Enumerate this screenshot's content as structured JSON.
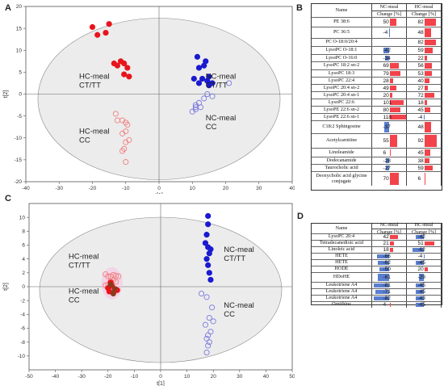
{
  "panel_labels": {
    "a": "A",
    "b": "B",
    "c": "C",
    "d": "D"
  },
  "colors": {
    "hc_filled": "#e8141c",
    "hc_open": "#f08080",
    "nc_filled": "#1a1ad0",
    "nc_open": "#7a7ae0",
    "ellipse_fill": "#ececec",
    "bar_red": "#f2434b",
    "bar_blue": "#5a7fd0"
  },
  "chart_data": [
    {
      "type": "scatter",
      "xlabel": "t[1]",
      "ylabel": "t[2]",
      "xlim": [
        -40,
        40
      ],
      "ylim": [
        -20,
        20
      ],
      "xticks": [
        -40,
        -30,
        -20,
        -10,
        0,
        10,
        20,
        30,
        40
      ],
      "yticks": [
        -20,
        -15,
        -10,
        -5,
        0,
        5,
        10,
        15,
        20
      ],
      "annotations": [
        {
          "text": "HC-meal\nCT/TT",
          "x": -24,
          "y": 3.5
        },
        {
          "text": "HC-meal\nCC",
          "x": -24,
          "y": -9
        },
        {
          "text": "NC-meal\nCT/TT",
          "x": 14,
          "y": 3.5
        },
        {
          "text": "NC-meal\nCC",
          "x": 14,
          "y": -6
        }
      ],
      "series": [
        {
          "name": "HC-meal CT/TT",
          "filled": true,
          "color": "hc_filled",
          "x": [
            -20,
            -18.5,
            -15,
            -16,
            -13.5,
            -12.5,
            -11.5,
            -10.5,
            -9.5,
            -9,
            -10.5
          ],
          "y": [
            15.3,
            13.5,
            16,
            14,
            7,
            6.5,
            7.5,
            7,
            6,
            4,
            4.5
          ]
        },
        {
          "name": "HC-meal CC",
          "filled": false,
          "color": "hc_open",
          "x": [
            -13,
            -12.5,
            -11,
            -10,
            -9.5,
            -10,
            -11,
            -9,
            -10,
            -11,
            -10.5,
            -10
          ],
          "y": [
            -4.5,
            -6,
            -6,
            -6.5,
            -7,
            -8.5,
            -9,
            -10.5,
            -11,
            -13,
            -12.5,
            -15.5
          ]
        },
        {
          "name": "NC-meal CT/TT",
          "filled": true,
          "color": "nc_filled",
          "x": [
            11.5,
            14,
            13.5,
            12,
            10.5,
            15,
            13,
            12,
            14.5,
            16,
            15
          ],
          "y": [
            8.5,
            7.5,
            6.5,
            6,
            3.5,
            4,
            3.5,
            2.5,
            3,
            2.5,
            2
          ]
        },
        {
          "name": "NC-meal CC",
          "filled": false,
          "color": "nc_open",
          "x": [
            21,
            16,
            14.5,
            13.5,
            12,
            11,
            12.5,
            11,
            10,
            11
          ],
          "y": [
            2.5,
            -0.5,
            0,
            -1,
            -2,
            -2.5,
            -3,
            -3.5,
            -4,
            -3
          ]
        }
      ]
    },
    {
      "type": "scatter",
      "xlabel": "t[1]",
      "ylabel": "t[2]",
      "xlim": [
        -50,
        50
      ],
      "ylim": [
        -12,
        12
      ],
      "xticks": [
        -50,
        -40,
        -30,
        -20,
        -10,
        0,
        10,
        20,
        30,
        40,
        50
      ],
      "yticks": [
        -10,
        -8,
        -6,
        -4,
        -2,
        0,
        2,
        4,
        6,
        8,
        10
      ],
      "annotations": [
        {
          "text": "HC-meal\nCT/TT",
          "x": -35,
          "y": 4
        },
        {
          "text": "HC-meal\nCC",
          "x": -35,
          "y": -1
        },
        {
          "text": "NC-meal\nCT/TT",
          "x": 24,
          "y": 5
        },
        {
          "text": "NC-meal\nCC",
          "x": 24,
          "y": -3
        }
      ],
      "series": [
        {
          "name": "HC-meal CT/TT",
          "filled": false,
          "color": "hc_open",
          "x": [
            -21,
            -20,
            -19,
            -18,
            -17,
            -16,
            -19,
            -18,
            -17,
            -21,
            -20
          ],
          "y": [
            1.8,
            1.5,
            1.5,
            1.7,
            1.6,
            1.5,
            0.8,
            0.9,
            0.7,
            0.2,
            0.3
          ]
        },
        {
          "name": "HC-meal CC",
          "filled": true,
          "color": "hc_filled",
          "x": [
            -20,
            -18.5,
            -17,
            -19.5,
            -18,
            -16.5,
            -19
          ],
          "y": [
            -0.2,
            0.1,
            -0.4,
            -0.7,
            -0.9,
            -0.5,
            0.6
          ]
        },
        {
          "name": "NC-meal CT/TT",
          "filled": true,
          "color": "nc_filled",
          "x": [
            18,
            18,
            17.5,
            17,
            18,
            19,
            18.5,
            17.5,
            18,
            18.5,
            19
          ],
          "y": [
            10.2,
            9,
            7.5,
            6.3,
            5.7,
            5.4,
            4.8,
            4,
            3.1,
            2,
            1
          ]
        },
        {
          "name": "NC-meal CC",
          "filled": false,
          "color": "nc_open",
          "x": [
            15.5,
            17.5,
            19.5,
            17,
            18.5,
            20,
            19,
            18,
            17.5,
            18.5,
            18,
            17.5
          ],
          "y": [
            -1,
            -1.5,
            -3,
            -5.5,
            -4.5,
            -5,
            -6.5,
            -7,
            -7.5,
            -8,
            -8.5,
            -9.5
          ]
        }
      ]
    }
  ],
  "table_b": {
    "header": {
      "name": "Name",
      "col1": "NC-meal",
      "col1_sub": "Change [%]",
      "col2": "HC-meal",
      "col2_sub": "Change [%]"
    },
    "rows": [
      {
        "name": "PE 38:6",
        "nc": "50",
        "hc": "82",
        "nc_v": 50,
        "hc_v": 82
      },
      {
        "name": "PC 36:5",
        "nc": "-4",
        "hc": "48",
        "nc_v": -4,
        "hc_v": 48
      },
      {
        "name": "PC O-18:0/20:4",
        "nc": "",
        "hc": "82",
        "nc_v": 0,
        "hc_v": 82
      },
      {
        "name": "LysoPC O-18:1",
        "nc": "-42",
        "hc": "59",
        "nc_v": -42,
        "hc_v": 59
      },
      {
        "name": "LysoPC O-16:0",
        "nc": "-34",
        "hc": "22",
        "nc_v": -34,
        "hc_v": 22
      },
      {
        "name": "LysoPC 18:2 sn-2",
        "nc": "69",
        "hc": "56",
        "nc_v": 69,
        "hc_v": 56
      },
      {
        "name": "LysoPC 18:3",
        "nc": "79",
        "hc": "53",
        "nc_v": 79,
        "hc_v": 53
      },
      {
        "name": "LysoPC 22:4",
        "nc": "28",
        "hc": "40",
        "nc_v": 28,
        "hc_v": 40
      },
      {
        "name": "LysoPC 20:4 sn-2",
        "nc": "49",
        "hc": "27",
        "nc_v": 49,
        "hc_v": 27
      },
      {
        "name": "LysoPC 20:4 sn-1",
        "nc": "20",
        "hc": "72",
        "nc_v": 20,
        "hc_v": 72
      },
      {
        "name": "LysoPC 22:6",
        "nc": "101",
        "hc": "18",
        "nc_v": 101,
        "hc_v": 18
      },
      {
        "name": "LysoPE 22:6 sn-2",
        "nc": "80",
        "hc": "45",
        "nc_v": 80,
        "hc_v": 45
      },
      {
        "name": "LysoPE 22:6 sn-1",
        "nc": "118",
        "hc": "-4",
        "nc_v": 118,
        "hc_v": -4
      },
      {
        "name": "C18:2 Sphingosine",
        "nc": "-37",
        "hc": "48",
        "nc_v": -37,
        "hc_v": 48
      },
      {
        "name": "Acetylcarnitine",
        "nc": "55",
        "hc": "92",
        "nc_v": 55,
        "hc_v": 92
      },
      {
        "name": "Linoleamide",
        "nc": "6",
        "hc": "45",
        "nc_v": 6,
        "hc_v": 45
      },
      {
        "name": "Dodecanamide",
        "nc": "-28",
        "hc": "38",
        "nc_v": -28,
        "hc_v": 38
      },
      {
        "name": "Taurocholic acid",
        "nc": "-27",
        "hc": "59",
        "nc_v": -27,
        "hc_v": 59
      },
      {
        "name": "Deoxycholic acid glycine conjugate",
        "nc": "70",
        "hc": "6",
        "nc_v": 70,
        "hc_v": 6
      }
    ]
  },
  "table_d": {
    "header": {
      "name": "Name",
      "col1": "NC-meal",
      "col1_sub": "Change [%]",
      "col2": "HC-meal",
      "col2_sub": "Change [%]"
    },
    "rows": [
      {
        "name": "LysoPC 20:4",
        "nc": "42",
        "hc": "-42",
        "nc_v": 42,
        "hc_v": -42
      },
      {
        "name": "Tetradecanedioic acid",
        "nc": "21",
        "hc": "51",
        "nc_v": 21,
        "hc_v": 51
      },
      {
        "name": "Linoleic acid",
        "nc": "18",
        "hc": "-62",
        "nc_v": 18,
        "hc_v": -62
      },
      {
        "name": "HETE",
        "nc": "-66",
        "hc": "-4",
        "nc_v": -66,
        "hc_v": -4
      },
      {
        "name": "HETE",
        "nc": "-62",
        "hc": "-45",
        "nc_v": -62,
        "hc_v": -45
      },
      {
        "name": "HODE",
        "nc": "-50",
        "hc": "20",
        "nc_v": -50,
        "hc_v": 20
      },
      {
        "name": "HDoHE",
        "nc": "-61",
        "hc": "-29",
        "nc_v": -61,
        "hc_v": -29
      },
      {
        "name": "Leukotriene A4",
        "nc": "-81",
        "hc": "-45",
        "nc_v": -81,
        "hc_v": -45
      },
      {
        "name": "Leukotriene A4",
        "nc": "-71",
        "hc": "-45",
        "nc_v": -71,
        "hc_v": -45
      },
      {
        "name": "Leukotriene A4",
        "nc": "-82",
        "hc": "-43",
        "nc_v": -82,
        "hc_v": -43
      },
      {
        "name": "Ornithine",
        "nc": "4",
        "hc": "-45",
        "nc_v": 4,
        "hc_v": -45
      }
    ]
  }
}
